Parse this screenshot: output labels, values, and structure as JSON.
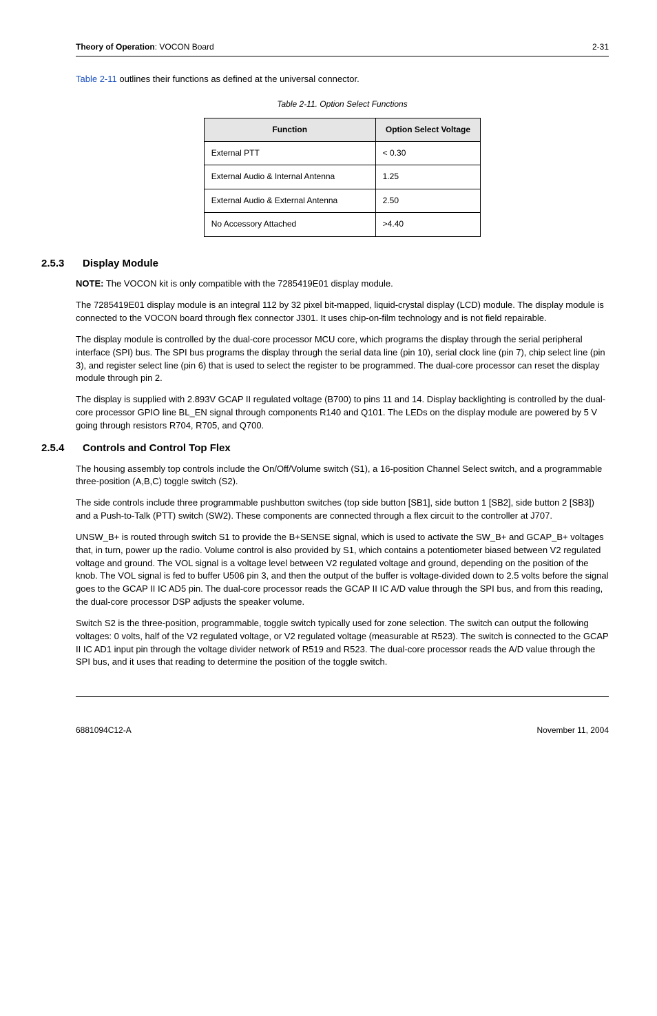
{
  "header": {
    "title_prefix": "Theory of Operation",
    "title_rest": ": VOCON Board",
    "page": "2-31"
  },
  "intro": {
    "link_text": "Table 2-11",
    "rest": " outlines their functions as defined at the universal connector."
  },
  "table": {
    "caption": "Table 2-11.  Option Select Functions",
    "head": {
      "c1": "Function",
      "c2": "Option Select Voltage"
    },
    "rows": [
      {
        "c1": "External PTT",
        "c2": "< 0.30"
      },
      {
        "c1": "External Audio & Internal Antenna",
        "c2": "1.25"
      },
      {
        "c1": "External Audio & External Antenna",
        "c2": "2.50"
      },
      {
        "c1": "No Accessory Attached",
        "c2": ">4.40"
      }
    ]
  },
  "s253": {
    "num": "2.5.3",
    "title": "Display Module",
    "note_label": "NOTE:",
    "note_text": " The VOCON kit is only compatible with the 7285419E01 display module.",
    "p1": "The 7285419E01 display module is an integral 112 by 32 pixel bit-mapped, liquid-crystal display (LCD) module. The display module is connected to the VOCON board through flex connector J301. It uses chip-on-film technology and is not field repairable.",
    "p2": "The display module is controlled by the dual-core processor MCU core, which programs the display through the serial peripheral interface (SPI) bus. The SPI bus programs the display through the serial data line (pin 10), serial clock line (pin 7), chip select line (pin 3), and register select line (pin 6) that is used to select the register to be programmed. The dual-core processor can reset the display module through pin 2.",
    "p3": "The display is supplied with 2.893V GCAP II regulated voltage (B700) to pins 11 and 14. Display backlighting is controlled by the dual-core processor GPIO line BL_EN signal through components R140 and Q101. The LEDs on the display module are powered by 5 V going through resistors R704, R705, and Q700."
  },
  "s254": {
    "num": "2.5.4",
    "title": "Controls and Control Top Flex",
    "p1": "The housing assembly top controls include the On/Off/Volume switch (S1), a 16-position Channel Select switch, and a programmable three-position (A,B,C) toggle switch (S2).",
    "p2": "The side controls include three programmable pushbutton switches (top side button [SB1], side button 1 [SB2], side button 2 [SB3]) and a Push-to-Talk (PTT) switch (SW2). These components are connected through a flex circuit to the controller at J707.",
    "p3": "UNSW_B+ is routed through switch S1 to provide the B+SENSE signal, which is used to activate the SW_B+ and GCAP_B+ voltages that, in turn, power up the radio. Volume control is also provided by S1, which contains a potentiometer biased between V2 regulated voltage and ground. The VOL signal is a voltage level between V2 regulated voltage and ground, depending on the position of the knob. The VOL signal is fed to buffer U506 pin 3, and then the output of the buffer is voltage-divided down to 2.5 volts before the signal goes to the GCAP II IC AD5 pin. The dual-core processor reads the GCAP II IC A/D value through the SPI bus, and from this reading, the dual-core processor DSP adjusts the speaker volume.",
    "p4": "Switch S2 is the three-position, programmable, toggle switch typically used for zone selection. The switch can output the following voltages: 0 volts, half of the V2 regulated voltage, or V2 regulated voltage (measurable at R523). The switch is connected to the GCAP II IC AD1 input pin through the voltage divider network of R519 and R523. The dual-core processor reads the A/D value through the SPI bus, and it uses that reading to determine the position of the toggle switch."
  },
  "footer": {
    "left": "6881094C12-A",
    "right": "November 11, 2004"
  }
}
